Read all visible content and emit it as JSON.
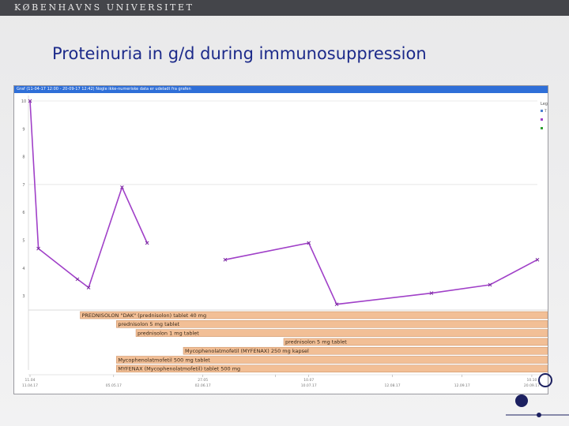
{
  "header": {
    "university": "KØBENHAVNS UNIVERSITET"
  },
  "slide": {
    "title": "Proteinuria in g/d during immunosuppression"
  },
  "window": {
    "title": "Graf (11-04-17 12:00 - 20-09-17 12:42) Nogle ikke-numeriske data er udeladt fra grafen"
  },
  "chart_data": {
    "type": "line",
    "x": [
      0,
      0.3,
      1.7,
      2.1,
      3.3,
      4.2,
      7.0,
      10.0,
      11.0,
      14.4,
      16.5,
      18.2
    ],
    "series": [
      {
        "values": [
          10,
          4.7,
          3.6,
          3.3,
          6.9,
          4.9,
          4.3,
          4.9,
          2.7,
          3.1,
          3.4,
          4.3
        ],
        "color": "#a040c8"
      }
    ],
    "gap_after_index": 5,
    "yticks": [
      "10",
      "9",
      "8",
      "7",
      "6",
      "5",
      "4",
      "3"
    ],
    "ylim": [
      2.5,
      10
    ],
    "xticks": [
      {
        "pos": 0,
        "l1": "11.04",
        "l2": "11.04.17"
      },
      {
        "pos": 3.0,
        "l1": "",
        "l2": "05.05.17"
      },
      {
        "pos": 6.2,
        "l1": "27.05",
        "l2": "02.06.17"
      },
      {
        "pos": 8.8,
        "l1": "",
        "l2": ""
      },
      {
        "pos": 10.0,
        "l1": "10.07",
        "l2": "10.07.17"
      },
      {
        "pos": 13.0,
        "l1": "",
        "l2": "12.08.17"
      },
      {
        "pos": 15.5,
        "l1": "",
        "l2": "12.09.17"
      },
      {
        "pos": 18.0,
        "l1": "10.10",
        "l2": "20.09.17"
      }
    ],
    "xlim": [
      0,
      18.2
    ],
    "gridlines": [
      10,
      7
    ]
  },
  "medications": [
    {
      "label": "PREDNISOLON \"DAK\" (prednisolon) tablet 40 mg",
      "start": 1.8,
      "row": 0
    },
    {
      "label": "prednisolon 5 mg tablet",
      "start": 3.1,
      "row": 1
    },
    {
      "label": "prednisolon 1 mg tablet",
      "start": 3.8,
      "row": 2
    },
    {
      "label": "prednisolon 5 mg tablet",
      "start": 9.1,
      "row": 3
    },
    {
      "label": "Mycophenolatmofetil (MYFENAX) 250 mg kapsel",
      "start": 5.5,
      "row": 4
    },
    {
      "label": "Mycophenolatmofetil 500 mg tablet",
      "start": 3.1,
      "row": 5
    },
    {
      "label": "MYFENAX (Mycophenolatmofetil) tablet 500 mg",
      "start": 3.1,
      "row": 6
    }
  ],
  "legend": {
    "title": "Leg",
    "items": [
      "T",
      "",
      ""
    ],
    "colors": [
      "#4a7fd0",
      "#a040c8",
      "#30a030"
    ]
  },
  "colors": {
    "bar": "#f2bf96",
    "bar_border": "#c68a5e",
    "line": "#a040c8",
    "accent": "#1c2a8a"
  }
}
